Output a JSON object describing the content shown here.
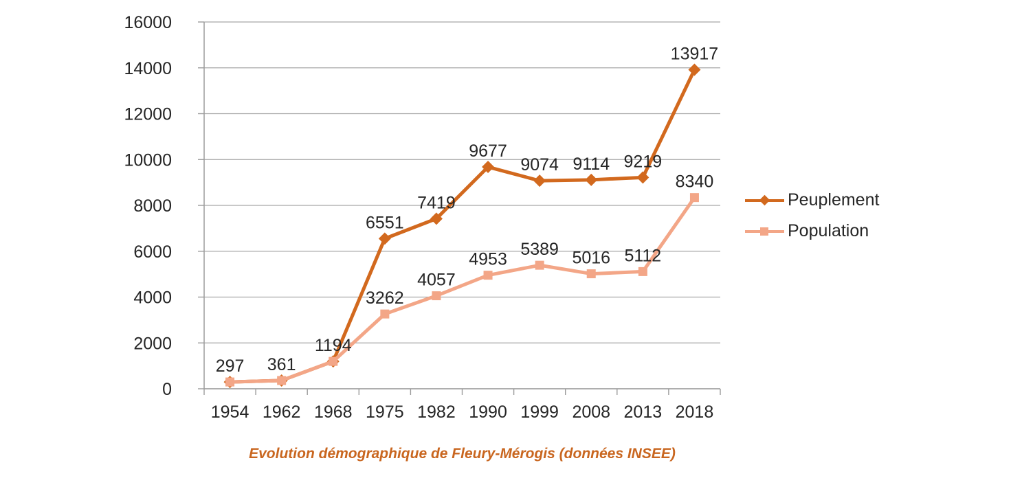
{
  "caption": {
    "text": "Evolution démographique de Fleury-Mérogis (données INSEE)"
  },
  "legend": {
    "position": "right",
    "items": [
      {
        "label": "Peuplement",
        "marker": "diamond",
        "color": "#D2691E"
      },
      {
        "label": "Population",
        "marker": "square",
        "color": "#F3A687"
      }
    ]
  },
  "axis": {
    "y_ticks": [
      "0",
      "2000",
      "4000",
      "6000",
      "8000",
      "10000",
      "12000",
      "14000",
      "16000"
    ],
    "x_ticks": [
      "1954",
      "1962",
      "1968",
      "1975",
      "1982",
      "1990",
      "1999",
      "2008",
      "2013",
      "2018"
    ]
  },
  "colors": {
    "background": "#FFFFFF",
    "peuplement": "#D2691E",
    "population": "#F3A687",
    "gridline": "#A6A6A6",
    "axis": "#9B9B9B",
    "text": "#262626",
    "caption": "#C9661F"
  },
  "chart_data": {
    "type": "line",
    "title": "",
    "xlabel": "",
    "ylabel": "",
    "categories": [
      "1954",
      "1962",
      "1968",
      "1975",
      "1982",
      "1990",
      "1999",
      "2008",
      "2013",
      "2018"
    ],
    "series": [
      {
        "name": "Peuplement",
        "marker": "diamond",
        "color": "#D2691E",
        "values": [
          297,
          361,
          1194,
          6551,
          7419,
          9677,
          9074,
          9114,
          9219,
          13917
        ],
        "label_indices": [
          3,
          4,
          5,
          6,
          7,
          8,
          9
        ]
      },
      {
        "name": "Population",
        "marker": "square",
        "color": "#F3A687",
        "values": [
          297,
          361,
          1194,
          3262,
          4057,
          4953,
          5389,
          5016,
          5112,
          8340
        ],
        "label_indices": [
          0,
          1,
          2,
          3,
          4,
          5,
          6,
          7,
          8,
          9
        ]
      }
    ],
    "ylim": [
      0,
      16000
    ],
    "ytick_step": 2000,
    "grid": true,
    "legend_position": "right"
  }
}
